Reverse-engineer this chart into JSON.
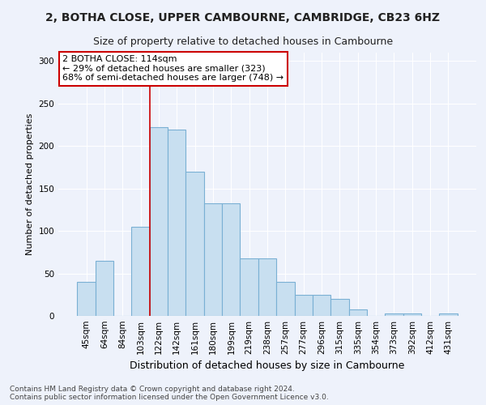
{
  "title_line1": "2, BOTHA CLOSE, UPPER CAMBOURNE, CAMBRIDGE, CB23 6HZ",
  "title_line2": "Size of property relative to detached houses in Cambourne",
  "xlabel": "Distribution of detached houses by size in Cambourne",
  "ylabel": "Number of detached properties",
  "categories": [
    "45sqm",
    "64sqm",
    "84sqm",
    "103sqm",
    "122sqm",
    "142sqm",
    "161sqm",
    "180sqm",
    "199sqm",
    "219sqm",
    "238sqm",
    "257sqm",
    "277sqm",
    "296sqm",
    "315sqm",
    "335sqm",
    "354sqm",
    "373sqm",
    "392sqm",
    "412sqm",
    "431sqm"
  ],
  "values": [
    40,
    65,
    0,
    105,
    222,
    219,
    170,
    133,
    133,
    68,
    68,
    40,
    25,
    25,
    20,
    8,
    0,
    3,
    3,
    0,
    3
  ],
  "bar_color": "#c8dff0",
  "bar_edge_color": "#7ab0d4",
  "vline_index": 4,
  "vline_color": "#cc0000",
  "annotation_title": "2 BOTHA CLOSE: 114sqm",
  "annotation_line2": "← 29% of detached houses are smaller (323)",
  "annotation_line3": "68% of semi-detached houses are larger (748) →",
  "annotation_box_facecolor": "#ffffff",
  "annotation_box_edgecolor": "#cc0000",
  "footnote_line1": "Contains HM Land Registry data © Crown copyright and database right 2024.",
  "footnote_line2": "Contains public sector information licensed under the Open Government Licence v3.0.",
  "background_color": "#eef2fb",
  "grid_color": "#ffffff",
  "ylim": [
    0,
    310
  ],
  "yticks": [
    0,
    50,
    100,
    150,
    200,
    250,
    300
  ],
  "title1_fontsize": 10,
  "title2_fontsize": 9,
  "ylabel_fontsize": 8,
  "xlabel_fontsize": 9,
  "tick_fontsize": 7.5,
  "ann_fontsize": 8,
  "footnote_fontsize": 6.5
}
